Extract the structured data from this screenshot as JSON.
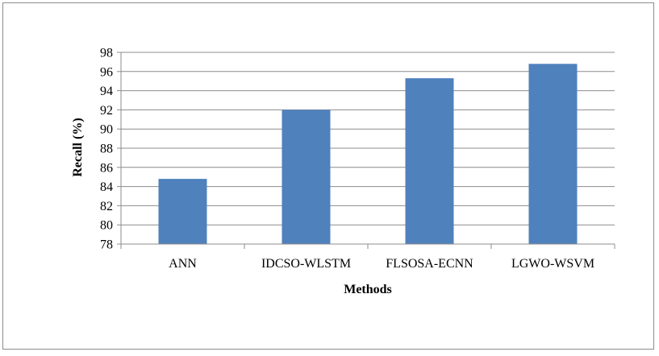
{
  "chart_data": {
    "type": "bar",
    "categories": [
      "ANN",
      "IDCSO-WLSTM",
      "FLSOSA-ECNN",
      "LGWO-WSVM"
    ],
    "values": [
      84.8,
      92.0,
      95.3,
      96.8
    ],
    "title": "",
    "xlabel": "Methods",
    "ylabel": "Recall (%)",
    "ylim": [
      78,
      98
    ],
    "yticks": [
      78,
      80,
      82,
      84,
      86,
      88,
      90,
      92,
      94,
      96,
      98
    ],
    "grid": true,
    "legend": "none",
    "bar_color": "#4f81bd",
    "grid_color": "#8c8c8c"
  }
}
